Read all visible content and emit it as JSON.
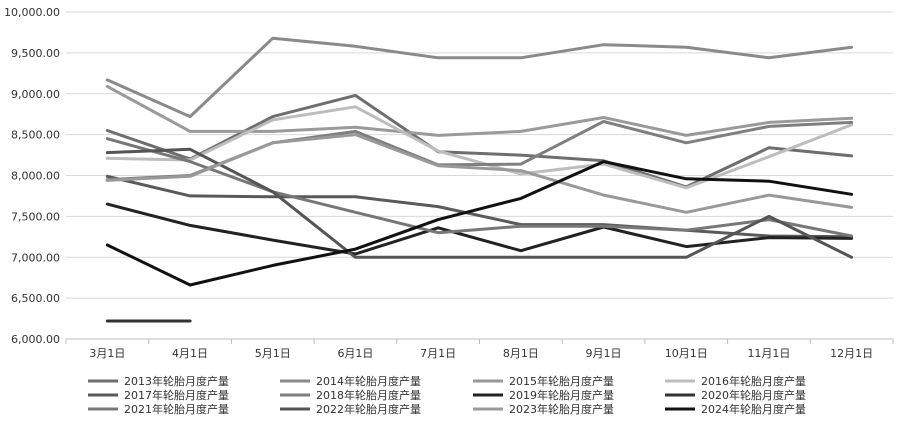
{
  "chart_data": {
    "type": "line",
    "categories": [
      "3月1日",
      "4月1日",
      "5月1日",
      "6月1日",
      "7月1日",
      "8月1日",
      "9月1日",
      "10月1日",
      "11月1日",
      "12月1日"
    ],
    "y_tick_labels": [
      "6,000.00",
      "6,500.00",
      "7,000.00",
      "7,500.00",
      "8,000.00",
      "8,500.00",
      "9,000.00",
      "9,500.00",
      "10,000.00"
    ],
    "ylim": [
      6000,
      10000
    ],
    "grid": true,
    "legend_position": "bottom",
    "series": [
      {
        "name": "2013年轮胎月度产量",
        "color": "#6e6e6e",
        "values": [
          8550,
          8200,
          8720,
          8980,
          8290,
          8250,
          8180,
          7860,
          8340,
          8240
        ]
      },
      {
        "name": "2014年轮胎月度产量",
        "color": "#8a8a8a",
        "values": [
          9170,
          8720,
          9680,
          9580,
          9440,
          9440,
          9600,
          9570,
          9440,
          9570
        ]
      },
      {
        "name": "2015年轮胎月度产量",
        "color": "#9a9a9a",
        "values": [
          9090,
          8540,
          8540,
          8590,
          8490,
          8540,
          8710,
          8490,
          8650,
          8700
        ]
      },
      {
        "name": "2016年轮胎月度产量",
        "color": "#bdbdbd",
        "values": [
          8210,
          8190,
          8680,
          8840,
          8300,
          8020,
          8140,
          7850,
          8230,
          8620
        ]
      },
      {
        "name": "2017年轮胎月度产量",
        "color": "#5a5a5a",
        "values": [
          7990,
          7750,
          7740,
          7740,
          7620,
          7400,
          7400,
          7330,
          7260,
          7250
        ]
      },
      {
        "name": "2018年轮胎月度产量",
        "color": "#7f7f7f",
        "values": [
          7950,
          8000,
          8400,
          8540,
          8130,
          8140,
          8660,
          8400,
          8600,
          8650
        ]
      },
      {
        "name": "2019年轮胎月度产量",
        "color": "#222222",
        "values": [
          7650,
          7390,
          7210,
          7040,
          7360,
          7080,
          7370,
          7130,
          7240,
          7230
        ]
      },
      {
        "name": "2020年轮胎月度产量",
        "color": "#333333",
        "values": [
          6220,
          6220,
          null,
          null,
          null,
          null,
          null,
          null,
          null,
          null
        ]
      },
      {
        "name": "2021年轮胎月度产量",
        "color": "#777777",
        "values": [
          8450,
          8170,
          7800,
          7550,
          7300,
          7380,
          7380,
          7330,
          7460,
          7260
        ]
      },
      {
        "name": "2022年轮胎月度产量",
        "color": "#555555",
        "values": [
          8280,
          8320,
          7800,
          7000,
          7000,
          7000,
          7000,
          7000,
          7500,
          7000
        ]
      },
      {
        "name": "2023年轮胎月度产量",
        "color": "#999999",
        "values": [
          7940,
          7990,
          8400,
          8500,
          8120,
          8060,
          7760,
          7550,
          7760,
          7610
        ]
      },
      {
        "name": "2024年轮胎月度产量",
        "color": "#111111",
        "values": [
          7150,
          6660,
          6900,
          7100,
          7460,
          7720,
          8170,
          7960,
          7930,
          7770
        ]
      }
    ]
  }
}
